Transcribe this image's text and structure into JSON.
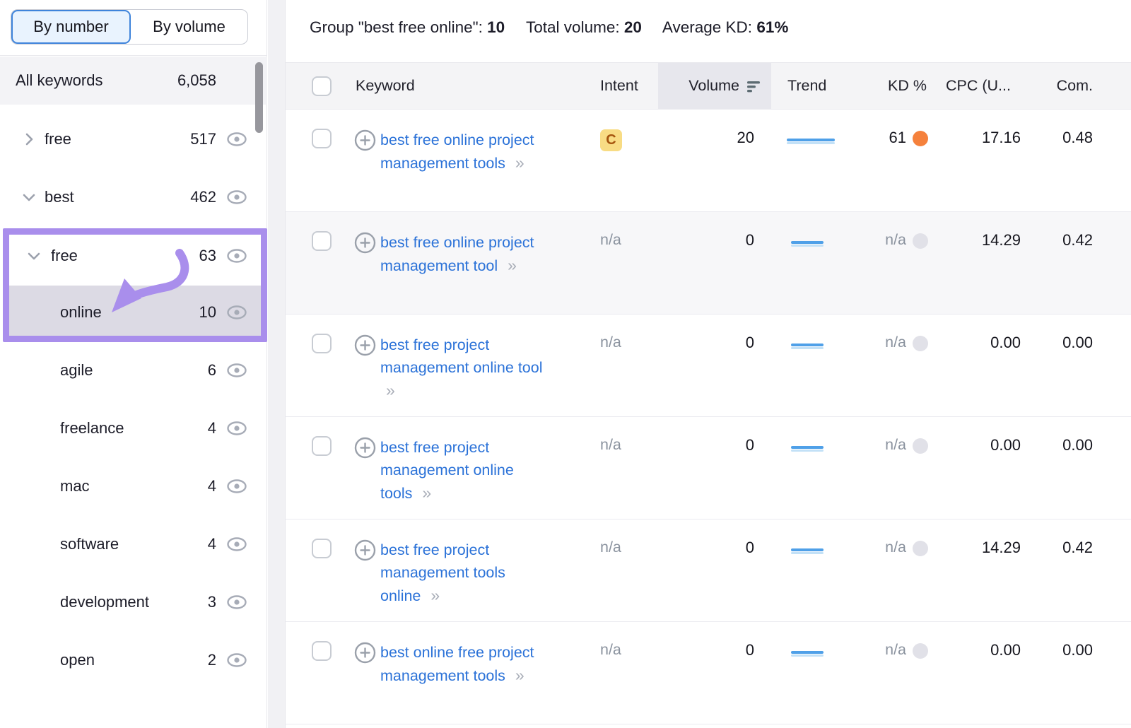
{
  "sidebar": {
    "toggle": {
      "by_number": "By number",
      "by_volume": "By volume"
    },
    "all_keywords": {
      "label": "All keywords",
      "count": "6,058"
    },
    "items": [
      {
        "label": "free",
        "count": "517",
        "chevron": "right",
        "level": 1
      },
      {
        "label": "best",
        "count": "462",
        "chevron": "down",
        "level": 1
      },
      {
        "label": "free",
        "count": "63",
        "chevron": "down",
        "level": 2
      },
      {
        "label": "online",
        "count": "10",
        "chevron": "none",
        "level": 3,
        "selected": true
      },
      {
        "label": "agile",
        "count": "6",
        "chevron": "none",
        "level": 3
      },
      {
        "label": "freelance",
        "count": "4",
        "chevron": "none",
        "level": 3
      },
      {
        "label": "mac",
        "count": "4",
        "chevron": "none",
        "level": 3
      },
      {
        "label": "software",
        "count": "4",
        "chevron": "none",
        "level": 3
      },
      {
        "label": "development",
        "count": "3",
        "chevron": "none",
        "level": 3
      },
      {
        "label": "open",
        "count": "2",
        "chevron": "none",
        "level": 3
      }
    ]
  },
  "summary": {
    "group_label": "Group \"best free online\":",
    "group_value": "10",
    "volume_label": "Total volume:",
    "volume_value": "20",
    "kd_label": "Average KD:",
    "kd_value": "61%"
  },
  "table": {
    "headers": {
      "keyword": "Keyword",
      "intent": "Intent",
      "volume": "Volume",
      "trend": "Trend",
      "kd": "KD %",
      "cpc": "CPC (U...",
      "com": "Com."
    },
    "rows": [
      {
        "keyword": "best free online project management tools",
        "intent": "C",
        "volume": "20",
        "kd": "61",
        "has_kd": true,
        "cpc": "17.16",
        "com": "0.48",
        "shade": false
      },
      {
        "keyword": "best free online project management tool",
        "intent": "n/a",
        "volume": "0",
        "kd": "n/a",
        "has_kd": false,
        "cpc": "14.29",
        "com": "0.42",
        "shade": true
      },
      {
        "keyword": "best free project management online tool",
        "intent": "n/a",
        "volume": "0",
        "kd": "n/a",
        "has_kd": false,
        "cpc": "0.00",
        "com": "0.00",
        "shade": false
      },
      {
        "keyword": "best free project management online tools",
        "intent": "n/a",
        "volume": "0",
        "kd": "n/a",
        "has_kd": false,
        "cpc": "0.00",
        "com": "0.00",
        "shade": false
      },
      {
        "keyword": "best free project management tools online",
        "intent": "n/a",
        "volume": "0",
        "kd": "n/a",
        "has_kd": false,
        "cpc": "14.29",
        "com": "0.42",
        "shade": false
      },
      {
        "keyword": "best online free project management tools",
        "intent": "n/a",
        "volume": "0",
        "kd": "n/a",
        "has_kd": false,
        "cpc": "0.00",
        "com": "0.00",
        "shade": false
      }
    ]
  },
  "colors": {
    "accent_purple": "#a98eec",
    "link_blue": "#2b72d8",
    "kd_orange": "#f5813c",
    "kd_gray": "#e1e1e8",
    "intent_badge_bg": "#f8dc84",
    "intent_badge_text": "#a5540d",
    "trend_blue": "#4fa0e8"
  }
}
